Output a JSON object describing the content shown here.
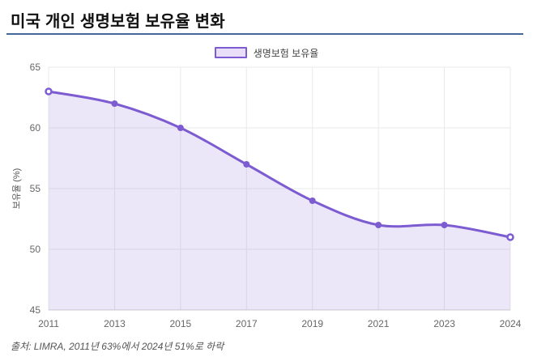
{
  "page": {
    "title": "미국 개인 생명보험 보유율 변화",
    "footer": "출처: LIMRA, 2011년 63%에서 2024년 51%로 하락"
  },
  "legend": {
    "label": "생명보험 보유율"
  },
  "colors": {
    "line": "#7d5cd2",
    "area_fill": "rgba(125,92,210,0.15)",
    "marker": "#7d5cd2",
    "marker_hollow_center": "#ffffff",
    "legend_swatch_fill": "#e8def8",
    "grid": "#e9e9e9",
    "axis": "#cfcfcf",
    "tick_text": "#666666",
    "axis_title_text": "#555555",
    "title_underline": "#44689a"
  },
  "chart_data": {
    "type": "area",
    "categories": [
      "2011",
      "2013",
      "2015",
      "2017",
      "2019",
      "2021",
      "2023",
      "2024"
    ],
    "series": [
      {
        "name": "생명보험 보유율",
        "values": [
          63,
          62,
          60,
          57,
          54,
          52,
          52,
          51
        ]
      }
    ],
    "title": "미국 개인 생명보험 보유율 변화",
    "xlabel": "",
    "ylabel": "보유율 (%)",
    "ylim": [
      45,
      65
    ],
    "yticks": [
      45,
      50,
      55,
      60,
      65
    ],
    "grid": true,
    "legend_position": "top",
    "smooth": true
  }
}
